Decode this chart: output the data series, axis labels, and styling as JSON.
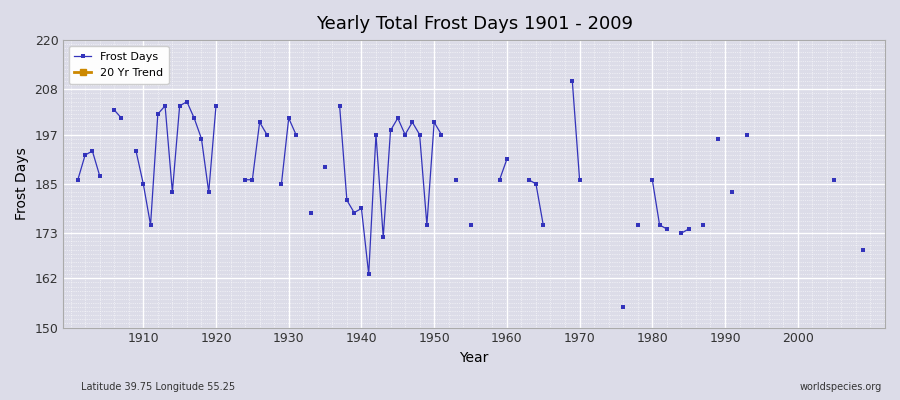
{
  "title": "Yearly Total Frost Days 1901 - 2009",
  "xlabel": "Year",
  "ylabel": "Frost Days",
  "subtitle_left": "Latitude 39.75 Longitude 55.25",
  "watermark": "worldspecies.org",
  "ylim": [
    150,
    220
  ],
  "yticks": [
    150,
    162,
    173,
    185,
    197,
    208,
    220
  ],
  "xlim": [
    1899,
    2012
  ],
  "xticks": [
    1910,
    1920,
    1930,
    1940,
    1950,
    1960,
    1970,
    1980,
    1990,
    2000
  ],
  "line_color": "#3333bb",
  "bg_color": "#dcdce8",
  "legend_labels": [
    "Frost Days",
    "20 Yr Trend"
  ],
  "legend_colors": [
    "#3333bb",
    "#cc8800"
  ],
  "years": [
    1901,
    1902,
    1903,
    1904,
    1905,
    1906,
    1907,
    1908,
    1909,
    1910,
    1911,
    1912,
    1913,
    1914,
    1915,
    1916,
    1917,
    1918,
    1919,
    1920,
    1921,
    1922,
    1923,
    1924,
    1925,
    1926,
    1927,
    1928,
    1929,
    1930,
    1931,
    1932,
    1933,
    1934,
    1935,
    1936,
    1937,
    1938,
    1939,
    1940,
    1941,
    1942,
    1943,
    1944,
    1945,
    1946,
    1947,
    1948,
    1949,
    1950,
    1951,
    1952,
    1953,
    1954,
    1955,
    1956,
    1957,
    1958,
    1959,
    1960,
    1961,
    1962,
    1963,
    1964,
    1965,
    1966,
    1967,
    1968,
    1969,
    1970,
    1971,
    1972,
    1973,
    1974,
    1975,
    1976,
    1977,
    1978,
    1979,
    1980,
    1981,
    1982,
    1983,
    1984,
    1985,
    1986,
    1987,
    1988,
    1989,
    1990,
    1991,
    1992,
    1993,
    1994,
    1995,
    1996,
    1997,
    1998,
    1999,
    2000,
    2001,
    2002,
    2003,
    2004,
    2005,
    2006,
    2007,
    2008,
    2009
  ],
  "values": [
    186,
    192,
    193,
    187,
    null,
    203,
    201,
    null,
    193,
    185,
    175,
    202,
    204,
    183,
    205,
    205,
    201,
    196,
    183,
    204,
    null,
    null,
    null,
    186,
    186,
    200,
    197,
    null,
    185,
    201,
    197,
    null,
    178,
    null,
    null,
    null,
    204,
    181,
    178,
    179,
    163,
    197,
    172,
    198,
    201,
    197,
    200,
    197,
    175,
    200,
    197,
    null,
    186,
    null,
    175,
    null,
    null,
    null,
    186,
    191,
    null,
    null,
    186,
    185,
    175,
    null,
    null,
    null,
    210,
    186,
    null,
    null,
    null,
    null,
    null,
    155,
    null,
    175,
    null,
    186,
    175,
    174,
    null,
    173,
    174,
    null,
    175,
    null,
    196,
    null,
    183,
    null,
    197,
    null,
    null,
    null,
    null,
    null,
    null,
    null,
    null,
    null,
    null,
    null,
    186,
    null,
    null,
    null,
    169
  ]
}
